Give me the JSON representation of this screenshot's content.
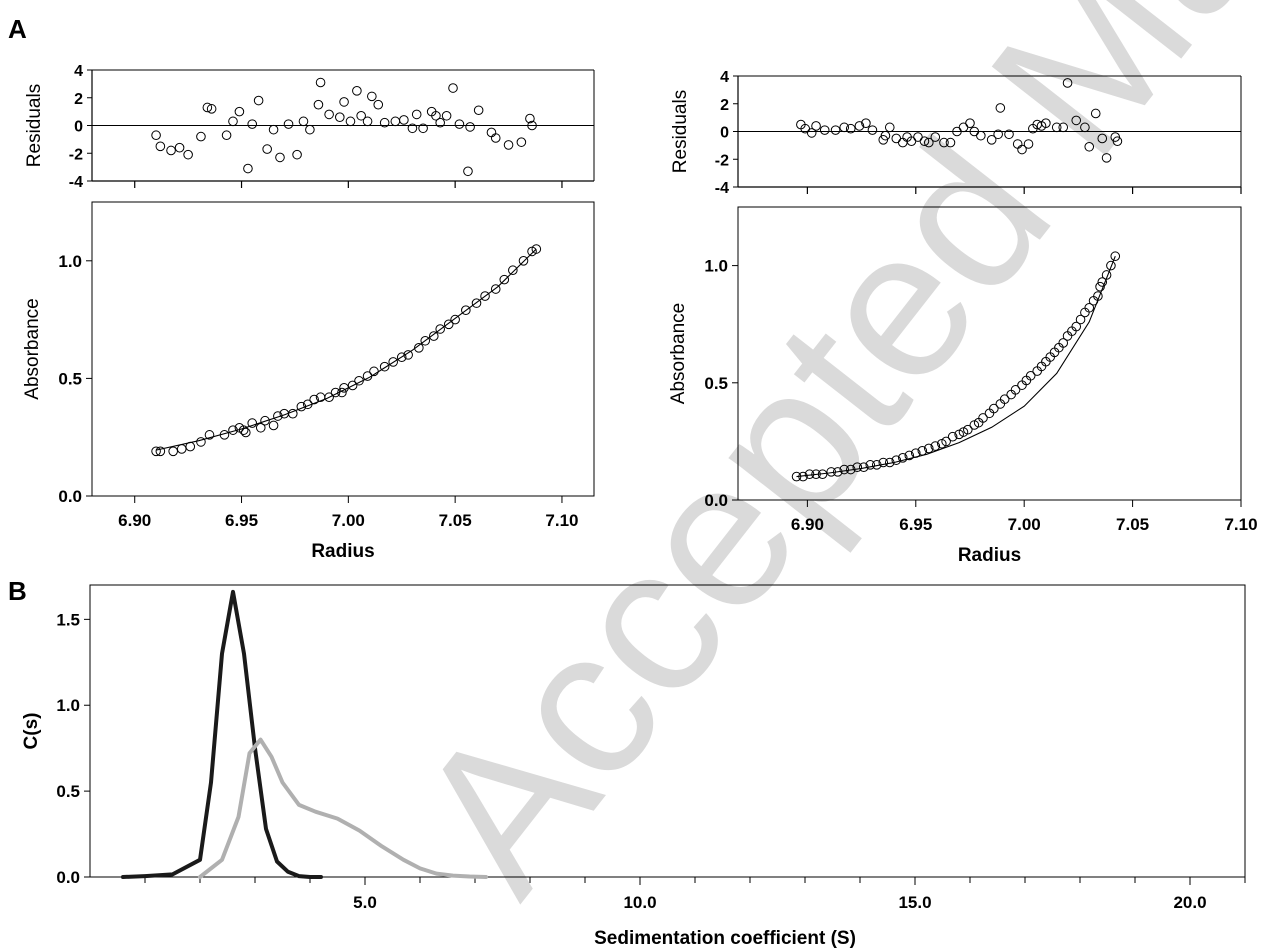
{
  "watermark": "Accepted Manuscript",
  "panels": {
    "A": "A",
    "B": "B"
  },
  "chart_data": [
    {
      "id": "A-left",
      "type": "scatter",
      "residuals": {
        "ylabel": "Residuals",
        "ylim": [
          -4,
          4
        ],
        "yticks": [
          "4",
          "2",
          "0",
          "-2",
          "-4"
        ],
        "values": [
          [
            6.91,
            -0.7
          ],
          [
            6.912,
            -1.5
          ],
          [
            6.917,
            -1.8
          ],
          [
            6.921,
            -1.6
          ],
          [
            6.925,
            -2.1
          ],
          [
            6.931,
            -0.8
          ],
          [
            6.934,
            1.3
          ],
          [
            6.936,
            1.2
          ],
          [
            6.943,
            -0.7
          ],
          [
            6.946,
            0.3
          ],
          [
            6.949,
            1.0
          ],
          [
            6.953,
            -3.1
          ],
          [
            6.955,
            0.1
          ],
          [
            6.958,
            1.8
          ],
          [
            6.962,
            -1.7
          ],
          [
            6.965,
            -0.3
          ],
          [
            6.968,
            -2.3
          ],
          [
            6.972,
            0.1
          ],
          [
            6.976,
            -2.1
          ],
          [
            6.979,
            0.3
          ],
          [
            6.982,
            -0.3
          ],
          [
            6.986,
            1.5
          ],
          [
            6.987,
            3.1
          ],
          [
            6.991,
            0.8
          ],
          [
            6.996,
            0.6
          ],
          [
            6.998,
            1.7
          ],
          [
            7.001,
            0.3
          ],
          [
            7.004,
            2.5
          ],
          [
            7.006,
            0.7
          ],
          [
            7.009,
            0.3
          ],
          [
            7.011,
            2.1
          ],
          [
            7.014,
            1.5
          ],
          [
            7.017,
            0.2
          ],
          [
            7.022,
            0.3
          ],
          [
            7.026,
            0.4
          ],
          [
            7.03,
            -0.2
          ],
          [
            7.032,
            0.8
          ],
          [
            7.035,
            -0.2
          ],
          [
            7.039,
            1.0
          ],
          [
            7.041,
            0.7
          ],
          [
            7.043,
            0.2
          ],
          [
            7.046,
            0.7
          ],
          [
            7.049,
            2.7
          ],
          [
            7.052,
            0.1
          ],
          [
            7.056,
            -3.3
          ],
          [
            7.057,
            -0.1
          ],
          [
            7.061,
            1.1
          ],
          [
            7.067,
            -0.5
          ],
          [
            7.069,
            -0.9
          ],
          [
            7.075,
            -1.4
          ],
          [
            7.081,
            -1.2
          ],
          [
            7.085,
            0.5
          ],
          [
            7.086,
            0.0
          ]
        ]
      },
      "main": {
        "ylabel": "Absorbance",
        "xlabel": "Radius",
        "xlim": [
          6.88,
          7.115
        ],
        "ylim": [
          0,
          1.25
        ],
        "xticks": [
          "6.90",
          "6.95",
          "7.00",
          "7.05",
          "7.10"
        ],
        "yticks": [
          "0.0",
          "0.5",
          "1.0"
        ],
        "x": [
          6.91,
          6.912,
          6.918,
          6.922,
          6.926,
          6.931,
          6.935,
          6.942,
          6.946,
          6.949,
          6.951,
          6.952,
          6.955,
          6.959,
          6.961,
          6.965,
          6.967,
          6.97,
          6.974,
          6.978,
          6.981,
          6.984,
          6.987,
          6.991,
          6.994,
          6.997,
          6.998,
          7.002,
          7.005,
          7.009,
          7.012,
          7.017,
          7.021,
          7.025,
          7.028,
          7.033,
          7.036,
          7.04,
          7.043,
          7.047,
          7.05,
          7.055,
          7.06,
          7.064,
          7.069,
          7.073,
          7.077,
          7.082,
          7.086,
          7.088
        ],
        "y": [
          0.19,
          0.19,
          0.19,
          0.2,
          0.21,
          0.23,
          0.26,
          0.26,
          0.28,
          0.29,
          0.28,
          0.27,
          0.31,
          0.29,
          0.32,
          0.3,
          0.34,
          0.35,
          0.35,
          0.38,
          0.39,
          0.41,
          0.42,
          0.42,
          0.44,
          0.44,
          0.46,
          0.47,
          0.49,
          0.51,
          0.53,
          0.55,
          0.57,
          0.59,
          0.6,
          0.63,
          0.66,
          0.68,
          0.71,
          0.73,
          0.75,
          0.79,
          0.82,
          0.85,
          0.88,
          0.92,
          0.96,
          1.0,
          1.04,
          1.05
        ],
        "fit_x": [
          6.91,
          6.93,
          6.95,
          6.97,
          6.99,
          7.01,
          7.03,
          7.05,
          7.07,
          7.088
        ],
        "fit_y": [
          0.195,
          0.235,
          0.285,
          0.345,
          0.415,
          0.505,
          0.62,
          0.755,
          0.89,
          1.05
        ]
      }
    },
    {
      "id": "A-right",
      "type": "scatter",
      "residuals": {
        "ylabel": "Residuals",
        "ylim": [
          -4,
          4
        ],
        "yticks": [
          "4",
          "2",
          "0",
          "-2",
          "-4"
        ],
        "values": [
          [
            6.897,
            0.5
          ],
          [
            6.899,
            0.2
          ],
          [
            6.902,
            -0.1
          ],
          [
            6.904,
            0.4
          ],
          [
            6.908,
            0.1
          ],
          [
            6.913,
            0.1
          ],
          [
            6.917,
            0.3
          ],
          [
            6.92,
            0.2
          ],
          [
            6.924,
            0.4
          ],
          [
            6.927,
            0.6
          ],
          [
            6.93,
            0.1
          ],
          [
            6.935,
            -0.6
          ],
          [
            6.936,
            -0.3
          ],
          [
            6.938,
            0.3
          ],
          [
            6.941,
            -0.5
          ],
          [
            6.944,
            -0.8
          ],
          [
            6.946,
            -0.4
          ],
          [
            6.948,
            -0.7
          ],
          [
            6.951,
            -0.4
          ],
          [
            6.954,
            -0.7
          ],
          [
            6.956,
            -0.8
          ],
          [
            6.959,
            -0.4
          ],
          [
            6.963,
            -0.8
          ],
          [
            6.966,
            -0.8
          ],
          [
            6.969,
            0.0
          ],
          [
            6.972,
            0.3
          ],
          [
            6.975,
            0.6
          ],
          [
            6.977,
            0.0
          ],
          [
            6.98,
            -0.3
          ],
          [
            6.985,
            -0.6
          ],
          [
            6.988,
            -0.2
          ],
          [
            6.989,
            1.7
          ],
          [
            6.993,
            -0.2
          ],
          [
            6.997,
            -0.9
          ],
          [
            6.999,
            -1.3
          ],
          [
            7.002,
            -0.9
          ],
          [
            7.004,
            0.2
          ],
          [
            7.006,
            0.5
          ],
          [
            7.008,
            0.4
          ],
          [
            7.01,
            0.6
          ],
          [
            7.015,
            0.3
          ],
          [
            7.018,
            0.3
          ],
          [
            7.02,
            3.5
          ],
          [
            7.024,
            0.8
          ],
          [
            7.028,
            0.3
          ],
          [
            7.03,
            -1.1
          ],
          [
            7.033,
            1.3
          ],
          [
            7.036,
            -0.5
          ],
          [
            7.038,
            -1.9
          ],
          [
            7.042,
            -0.4
          ],
          [
            7.043,
            -0.7
          ]
        ]
      },
      "main": {
        "ylabel": "Absorbance",
        "xlabel": "Radius",
        "xlim": [
          6.868,
          7.1
        ],
        "ylim": [
          0,
          1.25
        ],
        "xticks": [
          "6.90",
          "6.95",
          "7.00",
          "7.05",
          "7.10"
        ],
        "yticks": [
          "0.0",
          "0.5",
          "1.0"
        ],
        "x": [
          6.895,
          6.898,
          6.901,
          6.904,
          6.907,
          6.911,
          6.914,
          6.917,
          6.92,
          6.923,
          6.926,
          6.929,
          6.932,
          6.935,
          6.938,
          6.941,
          6.944,
          6.947,
          6.95,
          6.953,
          6.956,
          6.959,
          6.962,
          6.964,
          6.967,
          6.97,
          6.972,
          6.974,
          6.977,
          6.979,
          6.981,
          6.984,
          6.986,
          6.989,
          6.991,
          6.994,
          6.996,
          6.999,
          7.001,
          7.003,
          7.006,
          7.008,
          7.01,
          7.012,
          7.014,
          7.016,
          7.018,
          7.02,
          7.022,
          7.024,
          7.026,
          7.028,
          7.03,
          7.032,
          7.034,
          7.035,
          7.036,
          7.038,
          7.04,
          7.042
        ],
        "y": [
          0.1,
          0.1,
          0.11,
          0.11,
          0.11,
          0.12,
          0.12,
          0.13,
          0.13,
          0.14,
          0.14,
          0.15,
          0.15,
          0.16,
          0.16,
          0.17,
          0.18,
          0.19,
          0.2,
          0.21,
          0.22,
          0.23,
          0.24,
          0.25,
          0.27,
          0.28,
          0.29,
          0.3,
          0.32,
          0.33,
          0.35,
          0.37,
          0.39,
          0.41,
          0.43,
          0.45,
          0.47,
          0.49,
          0.51,
          0.53,
          0.55,
          0.57,
          0.59,
          0.61,
          0.63,
          0.65,
          0.67,
          0.7,
          0.72,
          0.74,
          0.77,
          0.8,
          0.82,
          0.85,
          0.87,
          0.91,
          0.93,
          0.96,
          1.0,
          1.04
        ],
        "fit_x": [
          6.895,
          6.91,
          6.925,
          6.94,
          6.955,
          6.97,
          6.985,
          7.0,
          7.015,
          7.03,
          7.042
        ],
        "fit_y": [
          0.1,
          0.115,
          0.135,
          0.16,
          0.195,
          0.245,
          0.31,
          0.4,
          0.54,
          0.76,
          1.04
        ]
      }
    },
    {
      "id": "B",
      "type": "line",
      "xlabel": "Sedimentation coefficient (S)",
      "ylabel": "C(s)",
      "xlim": [
        0,
        21
      ],
      "ylim": [
        0,
        1.7
      ],
      "xticks": [
        "5.0",
        "10.0",
        "15.0",
        "20.0"
      ],
      "yticks": [
        "0.0",
        "0.5",
        "1.0",
        "1.5"
      ],
      "series": [
        {
          "color": "#1a1a1a",
          "x": [
            0.6,
            1.0,
            1.5,
            2.0,
            2.2,
            2.4,
            2.6,
            2.8,
            3.0,
            3.2,
            3.4,
            3.6,
            3.8,
            4.0,
            4.2
          ],
          "y": [
            0.0,
            0.005,
            0.015,
            0.1,
            0.55,
            1.3,
            1.66,
            1.3,
            0.75,
            0.28,
            0.09,
            0.03,
            0.005,
            0.0,
            0.0
          ]
        },
        {
          "color": "#b0b0b0",
          "x": [
            2.0,
            2.4,
            2.7,
            2.9,
            3.1,
            3.3,
            3.5,
            3.8,
            4.1,
            4.5,
            4.9,
            5.3,
            5.7,
            6.0,
            6.3,
            6.6,
            6.9,
            7.2
          ],
          "y": [
            0.0,
            0.1,
            0.35,
            0.72,
            0.8,
            0.7,
            0.55,
            0.42,
            0.38,
            0.34,
            0.27,
            0.18,
            0.1,
            0.05,
            0.02,
            0.008,
            0.003,
            0.0
          ]
        }
      ]
    }
  ]
}
